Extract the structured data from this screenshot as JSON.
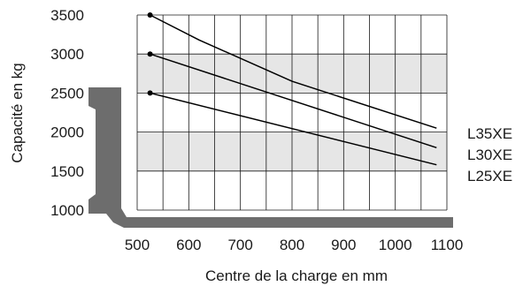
{
  "chart_data": {
    "type": "line",
    "title": "",
    "xlabel": "Centre de la charge en mm",
    "ylabel": "Capacité en kg",
    "xlim": [
      500,
      1100
    ],
    "ylim": [
      1000,
      3500
    ],
    "x_ticks": [
      "500",
      "600",
      "700",
      "800",
      "900",
      "1000",
      "1100"
    ],
    "y_ticks": [
      "1000",
      "1500",
      "2000",
      "2500",
      "3000",
      "3500"
    ],
    "grid": true,
    "legend_position": "right",
    "band_color": "#e6e6e6",
    "line_color": "#000000",
    "fork_color": "#6d6d6d",
    "series": [
      {
        "name": "L35XE",
        "points": [
          {
            "x": 525,
            "y": 3500
          },
          {
            "x": 620,
            "y": 3180
          },
          {
            "x": 800,
            "y": 2650
          },
          {
            "x": 1080,
            "y": 2050
          }
        ]
      },
      {
        "name": "L30XE",
        "points": [
          {
            "x": 525,
            "y": 3000
          },
          {
            "x": 1080,
            "y": 1800
          }
        ]
      },
      {
        "name": "L25XE",
        "points": [
          {
            "x": 525,
            "y": 2500
          },
          {
            "x": 1080,
            "y": 1580
          }
        ]
      }
    ]
  }
}
